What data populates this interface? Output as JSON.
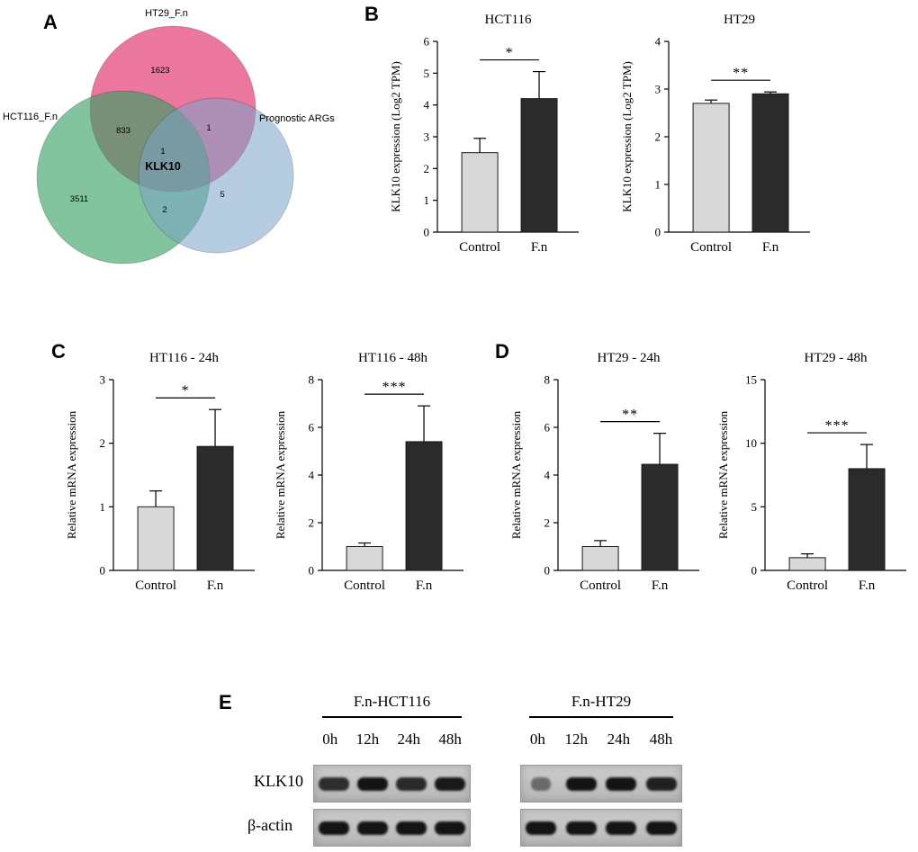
{
  "panel_labels": {
    "a": "A",
    "b": "B",
    "c": "C",
    "d": "D",
    "e": "E"
  },
  "chart_data": [
    {
      "type": "venn",
      "panel": "A",
      "sets": [
        {
          "name": "HT29_F.n",
          "color": "#e4487e"
        },
        {
          "name": "HCT116_F.n",
          "color": "#33a061"
        },
        {
          "name": "Prognostic ARGs",
          "color": "#7aa3c6"
        }
      ],
      "counts": {
        "ht29_only": "1623",
        "hct116_only": "3511",
        "args_only": "5",
        "ht29_hct116": "833",
        "ht29_args": "1",
        "hct116_args": "2",
        "all_three": "1",
        "center_gene": "KLK10",
        "center_gene_color": "#e8000b"
      }
    },
    {
      "type": "bar",
      "panel": "B",
      "title": "HCT116",
      "ylabel": "KLK10 expression (Log2 TPM)",
      "categories": [
        "Control",
        "F.n"
      ],
      "values": [
        2.5,
        4.2
      ],
      "errors": [
        0.45,
        0.85
      ],
      "ylim": [
        0,
        6
      ],
      "yticks": [
        0,
        1,
        2,
        3,
        4,
        5,
        6
      ],
      "significance": "*",
      "bar_colors": [
        "#d8d8d8",
        "#2b2b2b"
      ]
    },
    {
      "type": "bar",
      "panel": "B",
      "title": "HT29",
      "ylabel": "KLK10 expression (Log2 TPM)",
      "categories": [
        "Control",
        "F.n"
      ],
      "values": [
        2.7,
        2.9
      ],
      "errors": [
        0.07,
        0.04
      ],
      "ylim": [
        0,
        4
      ],
      "yticks": [
        0,
        1,
        2,
        3,
        4
      ],
      "significance": "**",
      "bar_colors": [
        "#d8d8d8",
        "#2b2b2b"
      ]
    },
    {
      "type": "bar",
      "panel": "C",
      "title": "HT116 - 24h",
      "ylabel": "Relative mRNA expression",
      "categories": [
        "Control",
        "F.n"
      ],
      "values": [
        1.0,
        1.95
      ],
      "errors": [
        0.25,
        0.58
      ],
      "ylim": [
        0,
        3
      ],
      "yticks": [
        0,
        1,
        2,
        3
      ],
      "significance": "*",
      "bar_colors": [
        "#d8d8d8",
        "#2b2b2b"
      ]
    },
    {
      "type": "bar",
      "panel": "C",
      "title": "HT116 - 48h",
      "ylabel": "Relative mRNA expression",
      "categories": [
        "Control",
        "F.n"
      ],
      "values": [
        1.0,
        5.4
      ],
      "errors": [
        0.15,
        1.5
      ],
      "ylim": [
        0,
        8
      ],
      "yticks": [
        0,
        2,
        4,
        6,
        8
      ],
      "significance": "***",
      "bar_colors": [
        "#d8d8d8",
        "#2b2b2b"
      ]
    },
    {
      "type": "bar",
      "panel": "D",
      "title": "HT29 - 24h",
      "ylabel": "Relative mRNA expression",
      "categories": [
        "Control",
        "F.n"
      ],
      "values": [
        1.0,
        4.45
      ],
      "errors": [
        0.25,
        1.3
      ],
      "ylim": [
        0,
        8
      ],
      "yticks": [
        0,
        2,
        4,
        6,
        8
      ],
      "significance": "**",
      "bar_colors": [
        "#d8d8d8",
        "#2b2b2b"
      ]
    },
    {
      "type": "bar",
      "panel": "D",
      "title": "HT29 - 48h",
      "ylabel": "Relative mRNA expression",
      "categories": [
        "Control",
        "F.n"
      ],
      "values": [
        1.0,
        8.0
      ],
      "errors": [
        0.3,
        1.9
      ],
      "ylim": [
        0,
        15
      ],
      "yticks": [
        0,
        5,
        10,
        15
      ],
      "significance": "***",
      "bar_colors": [
        "#d8d8d8",
        "#2b2b2b"
      ]
    },
    {
      "type": "western_blot",
      "panel": "E",
      "row_labels": [
        "KLK10",
        "β-actin"
      ],
      "groups": [
        {
          "title": "F.n-HCT116",
          "lanes": [
            "0h",
            "12h",
            "24h",
            "48h"
          ],
          "rows": [
            {
              "protein": "KLK10",
              "intensities": [
                0.8,
                1.0,
                0.82,
                0.92
              ]
            },
            {
              "protein": "β-actin",
              "intensities": [
                1.0,
                1.0,
                1.0,
                1.0
              ]
            }
          ]
        },
        {
          "title": "F.n-HT29",
          "lanes": [
            "0h",
            "12h",
            "24h",
            "48h"
          ],
          "rows": [
            {
              "protein": "KLK10",
              "intensities": [
                0.45,
                1.0,
                0.95,
                0.88
              ]
            },
            {
              "protein": "β-actin",
              "intensities": [
                1.0,
                1.0,
                1.0,
                1.0
              ]
            }
          ]
        }
      ]
    }
  ]
}
